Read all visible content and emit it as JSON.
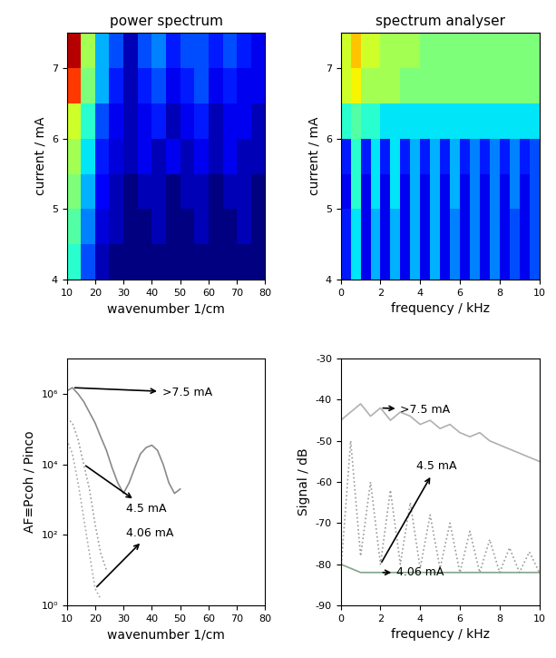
{
  "chart_data": [
    {
      "type": "heatmap",
      "title": "power spectrum",
      "x_label": "wavenumber 1/cm",
      "y_label": "current / mA",
      "xlim": [
        10,
        80
      ],
      "ylim": [
        4,
        7.5
      ],
      "xticks": [
        10,
        20,
        30,
        40,
        50,
        60,
        70,
        80
      ],
      "yticks": [
        4,
        5,
        6,
        7
      ],
      "x_edges": [
        10,
        15,
        20,
        25,
        30,
        35,
        40,
        45,
        50,
        55,
        60,
        65,
        70,
        75,
        80
      ],
      "y_edges": [
        4.0,
        4.5,
        5.0,
        5.5,
        6.0,
        6.5,
        7.0,
        7.5
      ],
      "zlim": [
        0,
        1
      ],
      "cells": [
        [
          0.4,
          0.2,
          0.05,
          0.0,
          0.0,
          0.0,
          0.0,
          0.0,
          0.0,
          0.0,
          0.0,
          0.0,
          0.0,
          0.0
        ],
        [
          0.45,
          0.25,
          0.08,
          0.05,
          0.0,
          0.0,
          0.05,
          0.0,
          0.0,
          0.05,
          0.0,
          0.0,
          0.05,
          0.0
        ],
        [
          0.5,
          0.3,
          0.12,
          0.05,
          0.0,
          0.05,
          0.05,
          0.0,
          0.05,
          0.05,
          0.0,
          0.05,
          0.05,
          0.0
        ],
        [
          0.55,
          0.35,
          0.15,
          0.08,
          0.05,
          0.1,
          0.05,
          0.1,
          0.05,
          0.1,
          0.05,
          0.1,
          0.05,
          0.05
        ],
        [
          0.6,
          0.4,
          0.2,
          0.1,
          0.05,
          0.1,
          0.15,
          0.05,
          0.1,
          0.15,
          0.05,
          0.1,
          0.1,
          0.05
        ],
        [
          0.85,
          0.5,
          0.3,
          0.15,
          0.05,
          0.15,
          0.2,
          0.1,
          0.15,
          0.2,
          0.1,
          0.15,
          0.1,
          0.1
        ],
        [
          0.95,
          0.55,
          0.3,
          0.2,
          0.05,
          0.2,
          0.25,
          0.15,
          0.2,
          0.2,
          0.15,
          0.2,
          0.15,
          0.1
        ]
      ]
    },
    {
      "type": "heatmap",
      "title": "spectrum analyser",
      "x_label": "frequency / kHz",
      "y_label": "current / mA",
      "xlim": [
        0,
        10
      ],
      "ylim": [
        4,
        7.5
      ],
      "xticks": [
        0,
        2,
        4,
        6,
        8,
        10
      ],
      "yticks": [
        4,
        5,
        6,
        7
      ],
      "x_edges": [
        0,
        0.5,
        1,
        1.5,
        2,
        2.5,
        3,
        3.5,
        4,
        4.5,
        5,
        5.5,
        6,
        6.5,
        7,
        7.5,
        8,
        8.5,
        9,
        9.5,
        10
      ],
      "y_edges": [
        4.0,
        4.5,
        5.0,
        5.5,
        6.0,
        6.5,
        7.0,
        7.5
      ],
      "zlim": [
        0,
        1
      ],
      "cells": [
        [
          0.15,
          0.35,
          0.1,
          0.3,
          0.1,
          0.3,
          0.1,
          0.3,
          0.1,
          0.3,
          0.1,
          0.25,
          0.1,
          0.25,
          0.1,
          0.25,
          0.1,
          0.2,
          0.1,
          0.2
        ],
        [
          0.15,
          0.35,
          0.1,
          0.3,
          0.1,
          0.3,
          0.1,
          0.3,
          0.1,
          0.3,
          0.1,
          0.25,
          0.1,
          0.25,
          0.1,
          0.25,
          0.1,
          0.2,
          0.1,
          0.2
        ],
        [
          0.1,
          0.4,
          0.1,
          0.35,
          0.1,
          0.35,
          0.1,
          0.3,
          0.1,
          0.3,
          0.1,
          0.3,
          0.1,
          0.25,
          0.1,
          0.25,
          0.1,
          0.25,
          0.1,
          0.2
        ],
        [
          0.15,
          0.4,
          0.15,
          0.35,
          0.15,
          0.35,
          0.15,
          0.3,
          0.15,
          0.3,
          0.15,
          0.3,
          0.15,
          0.25,
          0.15,
          0.25,
          0.15,
          0.25,
          0.15,
          0.2
        ],
        [
          0.4,
          0.45,
          0.4,
          0.4,
          0.35,
          0.35,
          0.35,
          0.35,
          0.35,
          0.35,
          0.35,
          0.35,
          0.35,
          0.35,
          0.35,
          0.35,
          0.35,
          0.35,
          0.35,
          0.35
        ],
        [
          0.6,
          0.65,
          0.55,
          0.55,
          0.55,
          0.55,
          0.5,
          0.5,
          0.5,
          0.5,
          0.5,
          0.5,
          0.5,
          0.5,
          0.5,
          0.5,
          0.5,
          0.5,
          0.5,
          0.5
        ],
        [
          0.6,
          0.7,
          0.6,
          0.6,
          0.55,
          0.55,
          0.55,
          0.55,
          0.5,
          0.5,
          0.5,
          0.5,
          0.5,
          0.5,
          0.5,
          0.5,
          0.5,
          0.5,
          0.5,
          0.5
        ]
      ]
    },
    {
      "type": "line",
      "log": "y",
      "x_label": "wavenumber 1/cm",
      "y_label": "AF≡Pcoh / Pinco",
      "xlim": [
        10,
        80
      ],
      "ylim": [
        1,
        10000000
      ],
      "xticks": [
        10,
        20,
        30,
        40,
        50,
        60,
        70,
        80
      ],
      "yticks": [
        {
          "value": 1,
          "label": "10⁰"
        },
        {
          "value": 100,
          "label": "10²"
        },
        {
          "value": 10000,
          "label": "10⁴"
        },
        {
          "value": 1000000,
          "label": "10⁶"
        }
      ],
      "series": [
        {
          "name": ">7.5 mA",
          "color": "#8a8a8a",
          "line_style": "solid",
          "x": [
            10,
            12,
            14,
            16,
            18,
            20,
            22,
            24,
            26,
            28,
            30,
            32,
            34,
            36,
            38,
            40,
            42,
            44,
            46,
            48,
            50
          ],
          "values": [
            1200000,
            1500000,
            1000000,
            600000,
            300000,
            150000,
            60000,
            25000,
            8000,
            3000,
            1500,
            3000,
            8000,
            20000,
            30000,
            35000,
            25000,
            10000,
            3000,
            1500,
            2000
          ]
        },
        {
          "name": "4.5 mA",
          "color": "#9a9a9a",
          "line_style": "dotted",
          "x": [
            10,
            12,
            14,
            16,
            18,
            20,
            22,
            24
          ],
          "values": [
            200000,
            150000,
            50000,
            10000,
            2000,
            200,
            30,
            10
          ]
        },
        {
          "name": "4.06 mA",
          "color": "#a8a8a8",
          "line_style": "dotted",
          "x": [
            10,
            12,
            14,
            16,
            18,
            20,
            22
          ],
          "values": [
            50000,
            20000,
            3000,
            300,
            30,
            3,
            1.5
          ]
        }
      ]
    },
    {
      "type": "line",
      "x_label": "frequency / kHz",
      "y_label": "Signal / dB",
      "xlim": [
        0,
        10
      ],
      "ylim": [
        -90,
        -30
      ],
      "xticks": [
        0,
        2,
        4,
        6,
        8,
        10
      ],
      "yticks": [
        -90,
        -80,
        -70,
        -60,
        -50,
        -40,
        -30
      ],
      "series": [
        {
          "name": ">7.5 mA",
          "color": "#b0b0b0",
          "line_style": "solid",
          "x": [
            0,
            0.5,
            1,
            1.5,
            2,
            2.5,
            3,
            3.5,
            4,
            4.5,
            5,
            5.5,
            6,
            6.5,
            7,
            7.5,
            8,
            8.5,
            9,
            9.5,
            10
          ],
          "values": [
            -45,
            -43,
            -41,
            -44,
            -42,
            -45,
            -43,
            -44,
            -46,
            -45,
            -47,
            -46,
            -48,
            -49,
            -48,
            -50,
            -51,
            -52,
            -53,
            -54,
            -55
          ]
        },
        {
          "name": "4.5 mA",
          "color": "#9a9a9a",
          "line_style": "dotted",
          "x": [
            0,
            0.5,
            1,
            1.5,
            2,
            2.5,
            3,
            3.5,
            4,
            4.5,
            5,
            5.5,
            6,
            6.5,
            7,
            7.5,
            8,
            8.5,
            9,
            9.5,
            10
          ],
          "values": [
            -82,
            -50,
            -78,
            -60,
            -80,
            -62,
            -80,
            -65,
            -81,
            -68,
            -81,
            -70,
            -82,
            -72,
            -82,
            -74,
            -82,
            -76,
            -82,
            -77,
            -82
          ]
        },
        {
          "name": "4.06 mA",
          "color": "#7fa58a",
          "line_style": "solid",
          "x": [
            0,
            0.5,
            1,
            1.5,
            2,
            2.5,
            3,
            3.5,
            4,
            4.5,
            5,
            5.5,
            6,
            6.5,
            7,
            7.5,
            8,
            8.5,
            9,
            9.5,
            10
          ],
          "values": [
            -80,
            -81,
            -82,
            -82,
            -82,
            -82,
            -82,
            -82,
            -82,
            -82,
            -82,
            -82,
            -82,
            -82,
            -82,
            -82,
            -82,
            -82,
            -82,
            -82,
            -82
          ]
        }
      ]
    }
  ]
}
